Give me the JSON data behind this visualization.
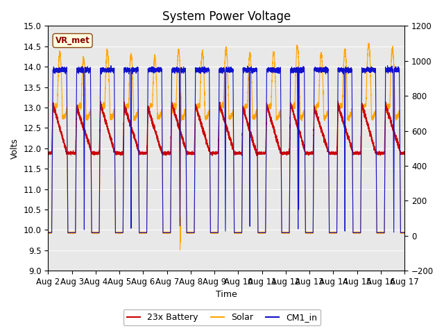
{
  "title": "System Power Voltage",
  "xlabel": "Time",
  "ylabel_left": "Volts",
  "ylim_left": [
    9.0,
    15.0
  ],
  "ylim_right": [
    -200,
    1200
  ],
  "yticks_left": [
    9.0,
    9.5,
    10.0,
    10.5,
    11.0,
    11.5,
    12.0,
    12.5,
    13.0,
    13.5,
    14.0,
    14.5,
    15.0
  ],
  "yticks_right": [
    -200,
    0,
    200,
    400,
    600,
    800,
    1000,
    1200
  ],
  "n_days": 15,
  "xtick_labels": [
    "Aug 2",
    "Aug 3",
    "Aug 4",
    "Aug 5",
    "Aug 6",
    "Aug 7",
    "Aug 8",
    "Aug 9",
    "Aug 10",
    "Aug 11",
    "Aug 12",
    "Aug 13",
    "Aug 14",
    "Aug 15",
    "Aug 16",
    "Aug 17"
  ],
  "colors": {
    "battery": "#CC0000",
    "solar": "#FFA500",
    "cm1": "#1010CC"
  },
  "legend_labels": [
    "23x Battery",
    "Solar",
    "CM1_in"
  ],
  "annotation_text": "VR_met",
  "bg_color": "#FFFFFF",
  "plot_bg_color": "#E8E8E8",
  "title_fontsize": 12,
  "label_fontsize": 9,
  "tick_fontsize": 8.5
}
